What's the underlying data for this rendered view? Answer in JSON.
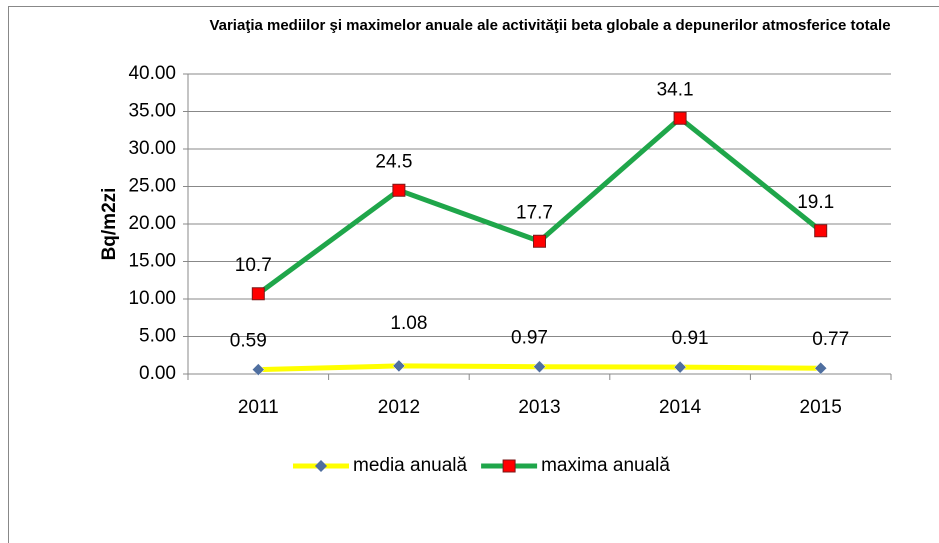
{
  "chart_data": {
    "type": "line",
    "title": "Variaţia mediilor şi maximelor anuale ale activităţii beta globale a depunerilor atmosferice totale",
    "ylabel": "Bq/m2zi",
    "categories": [
      "2011",
      "2012",
      "2013",
      "2014",
      "2015"
    ],
    "series": [
      {
        "name": "media anuală",
        "color": "#ffff00",
        "marker_color": "#4f6fa0",
        "values": [
          0.59,
          1.08,
          0.97,
          0.91,
          0.77
        ]
      },
      {
        "name": "maxima anuală",
        "color": "#1fa64a",
        "marker_color": "#ff0000",
        "values": [
          10.7,
          24.5,
          17.7,
          34.1,
          19.1
        ]
      }
    ],
    "ylim": [
      0,
      40
    ],
    "yticks": [
      {
        "value": 0,
        "label": "0.00"
      },
      {
        "value": 5,
        "label": "5.00"
      },
      {
        "value": 10,
        "label": "10.00"
      },
      {
        "value": 15,
        "label": "15.00"
      },
      {
        "value": 20,
        "label": "20.00"
      },
      {
        "value": 25,
        "label": "25.00"
      },
      {
        "value": 30,
        "label": "30.00"
      },
      {
        "value": 35,
        "label": "35.00"
      },
      {
        "value": 40,
        "label": "40.00"
      }
    ],
    "grid": true,
    "legend": "bottom"
  }
}
